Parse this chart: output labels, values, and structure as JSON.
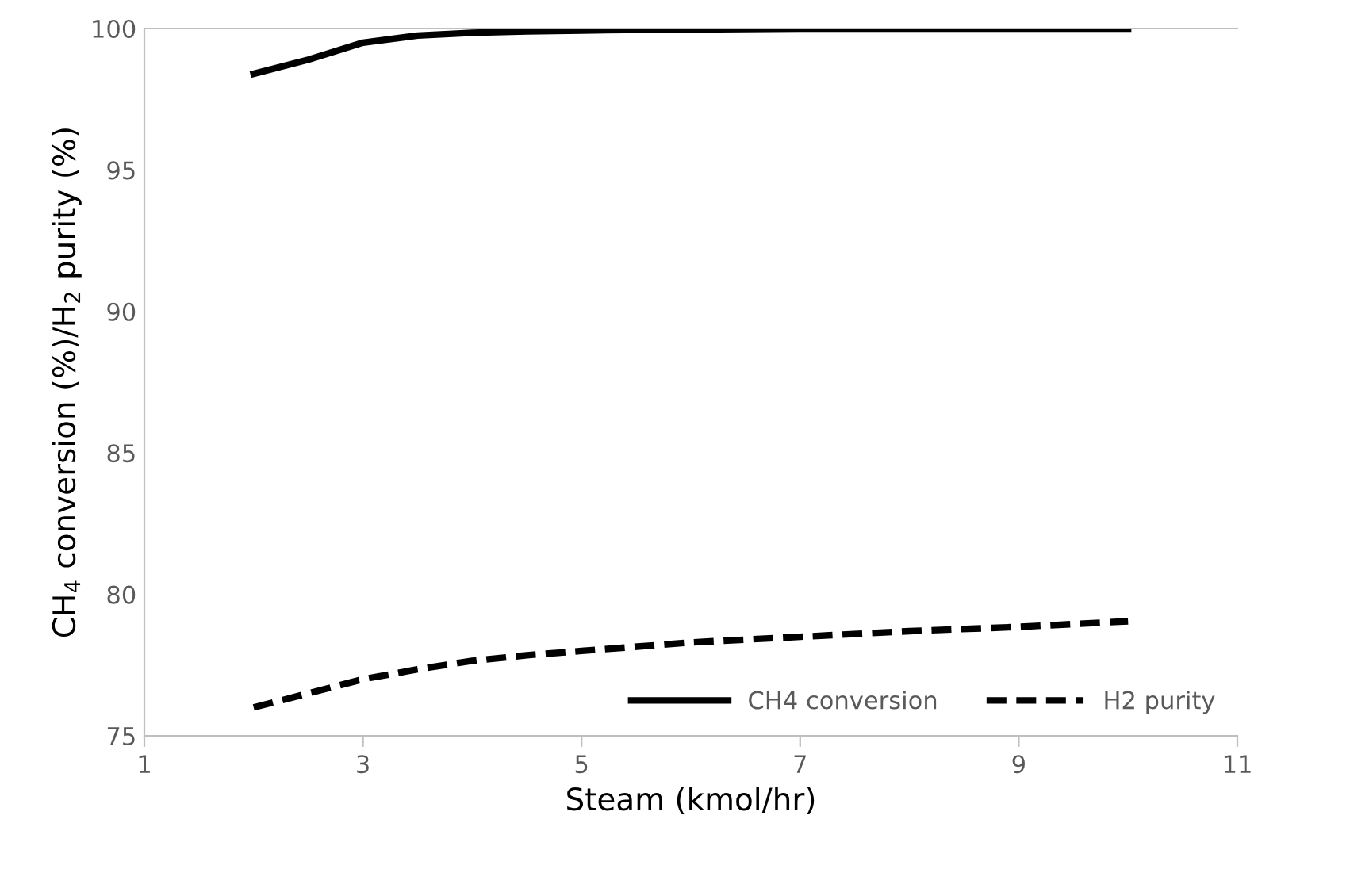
{
  "chart_data": {
    "type": "line",
    "xlabel": "Steam (kmol/hr)",
    "ylabel": "CH$_{4}$ conversion (%)/H$_{2}$ purity (%)",
    "xlim": [
      1,
      11
    ],
    "xticks": [
      1,
      3,
      5,
      7,
      9,
      11
    ],
    "ylim": [
      75,
      100
    ],
    "yticks": [
      75,
      80,
      85,
      90,
      95,
      100
    ],
    "grid": false,
    "legend": "bottom right",
    "marker": "none",
    "x": [
      2,
      2.5,
      3,
      3.5,
      4,
      4.5,
      5,
      6,
      7,
      8,
      9,
      10
    ],
    "series": [
      {
        "name": "CH4 conversion",
        "color": "#000000",
        "line_style": "solid",
        "values": [
          98.4,
          98.9,
          99.5,
          99.75,
          99.85,
          99.9,
          99.93,
          99.97,
          100,
          100,
          100,
          100
        ]
      },
      {
        "name": "H2 purity",
        "color": "#000000",
        "line_style": "dashed",
        "values": [
          76.0,
          76.5,
          77.0,
          77.35,
          77.65,
          77.85,
          78.0,
          78.3,
          78.5,
          78.7,
          78.85,
          79.05
        ]
      }
    ]
  }
}
